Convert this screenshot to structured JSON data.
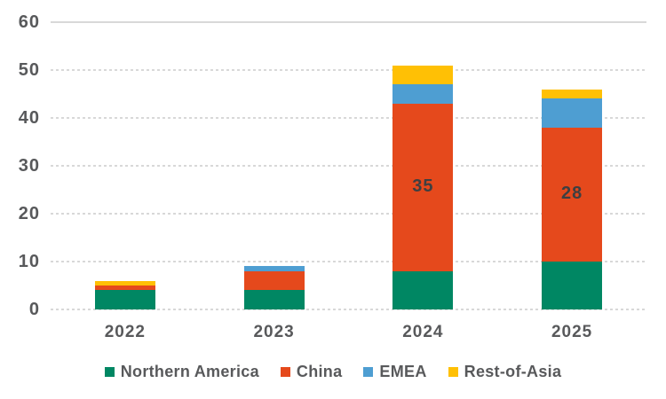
{
  "chart_data": {
    "type": "bar",
    "stacked": true,
    "title": "",
    "categories": [
      "2022",
      "2023",
      "2024",
      "2025"
    ],
    "series": [
      {
        "name": "Northern America",
        "color": "#008763",
        "values": [
          4,
          4,
          8,
          10
        ]
      },
      {
        "name": "China",
        "color": "#E5491C",
        "values": [
          1,
          4,
          35,
          28
        ]
      },
      {
        "name": "EMEA",
        "color": "#4E9ED2",
        "values": [
          0,
          1,
          4,
          6
        ]
      },
      {
        "name": "Rest-of-Asia",
        "color": "#FFC005",
        "values": [
          1,
          0,
          4,
          2
        ]
      }
    ],
    "totals": [
      6,
      9,
      51,
      46
    ],
    "xlabel": "",
    "ylabel": "",
    "ylim": [
      0,
      60
    ],
    "yticks": [
      0,
      10,
      20,
      30,
      40,
      50,
      60
    ],
    "grid": true,
    "legend_position": "bottom",
    "data_labels": [
      {
        "category": "2024",
        "series": "China",
        "text": "35"
      },
      {
        "category": "2025",
        "series": "China",
        "text": "28"
      }
    ]
  },
  "colors": {
    "axis_text": "#58595B",
    "data_label_text": "#3E3F41",
    "gridline": "#D8D8D8",
    "background": "#FFFFFF"
  }
}
